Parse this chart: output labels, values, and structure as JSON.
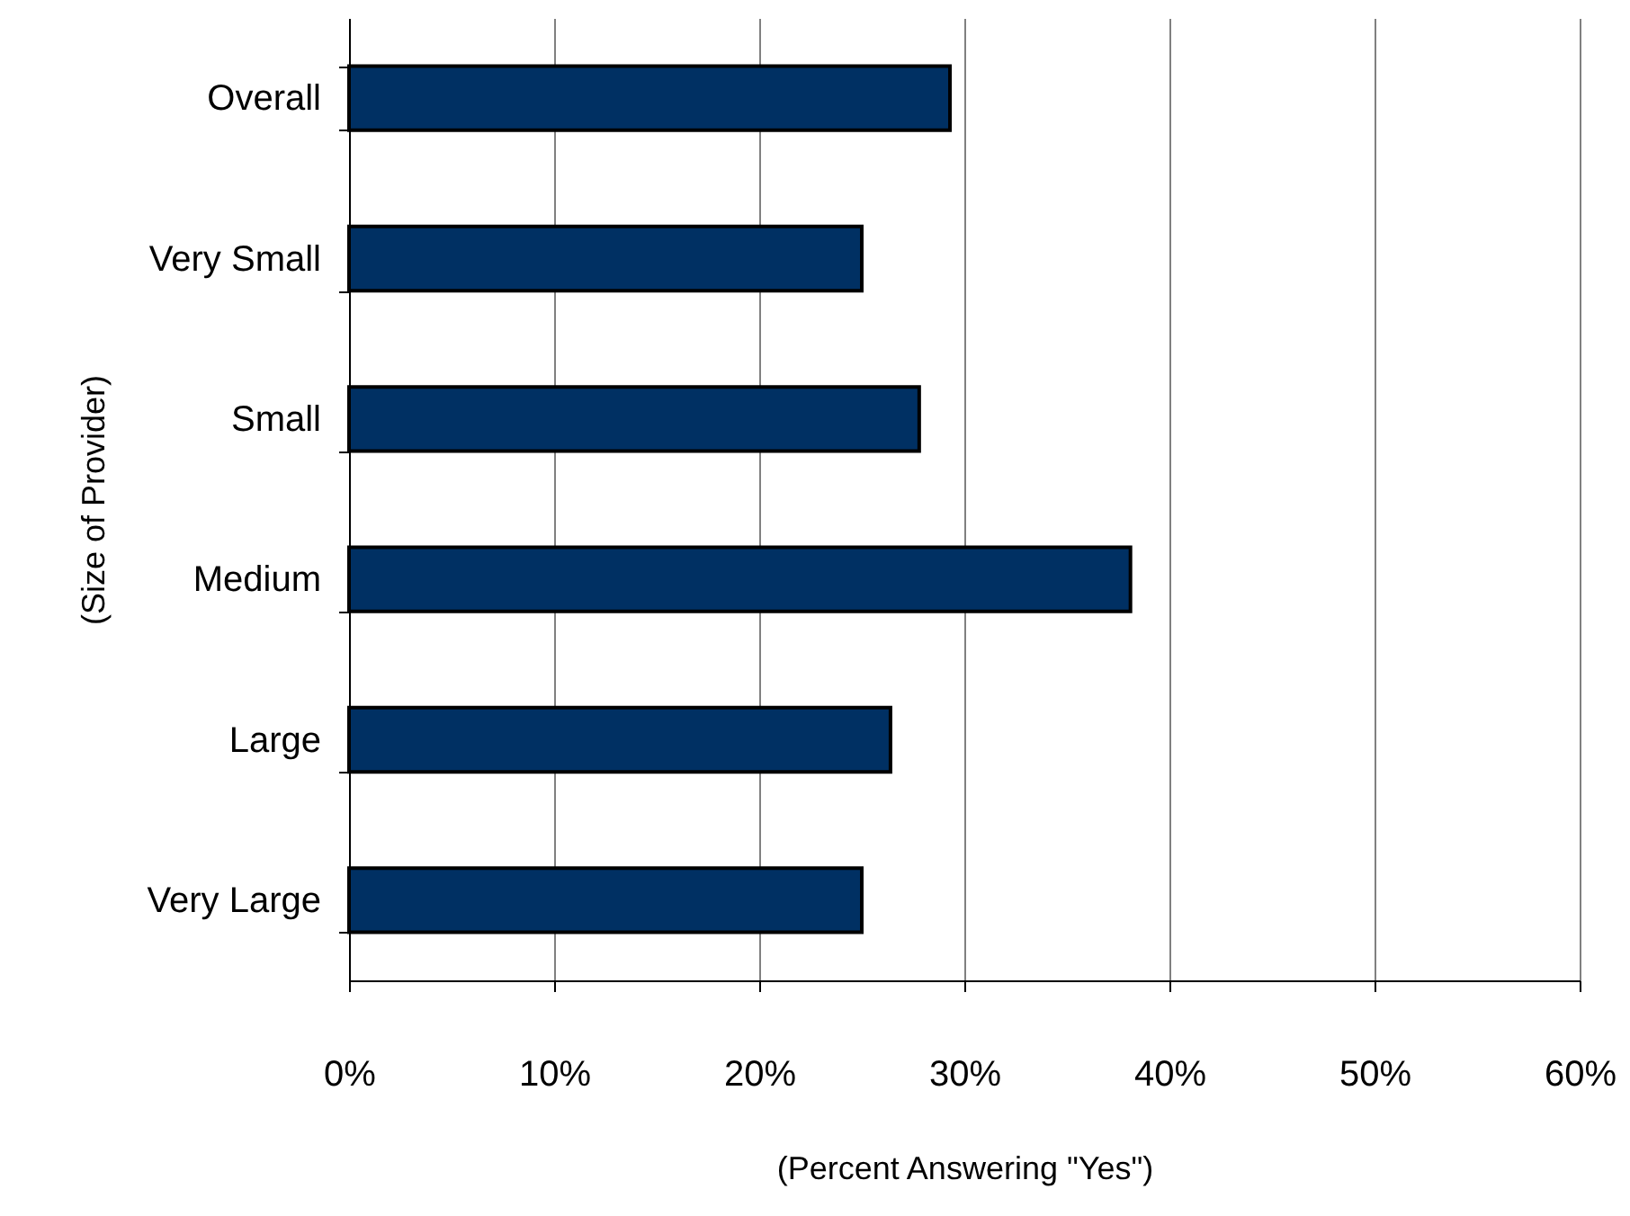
{
  "chart_data": {
    "type": "bar",
    "orientation": "horizontal",
    "xlabel": "(Percent Answering \"Yes\")",
    "ylabel": "(Size of Provider)",
    "categories": [
      "Overall",
      "Very Small",
      "Small",
      "Medium",
      "Large",
      "Very Large"
    ],
    "values": [
      29.3,
      25,
      27.8,
      38.1,
      26.4,
      25
    ],
    "color": "#003063",
    "xlim": [
      0,
      60
    ],
    "xticks": [
      {
        "value": 0,
        "label": "0%"
      },
      {
        "value": 10,
        "label": "10%"
      },
      {
        "value": 20,
        "label": "20%"
      },
      {
        "value": 30,
        "label": "30%"
      },
      {
        "value": 40,
        "label": "40%"
      },
      {
        "value": 50,
        "label": "50%"
      },
      {
        "value": 60,
        "label": "60%"
      }
    ],
    "grid": "x"
  }
}
